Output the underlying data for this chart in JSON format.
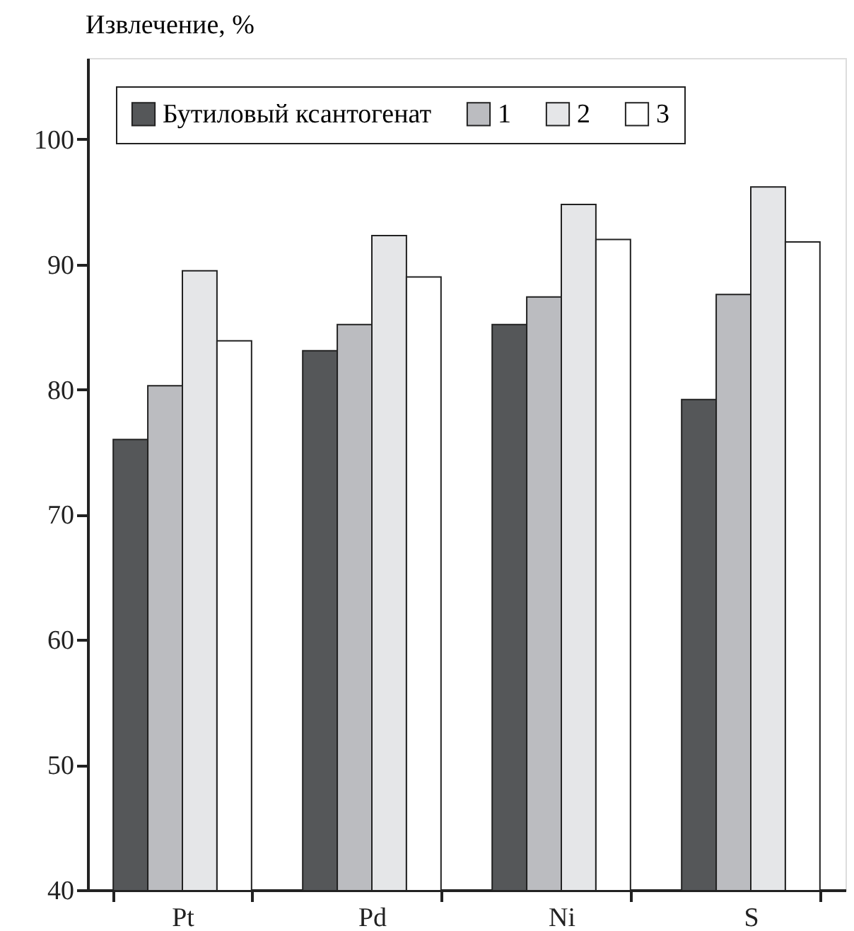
{
  "chart_data": {
    "type": "bar",
    "ylabel": "Извлечение, %",
    "categories": [
      "Pt",
      "Pd",
      "Ni",
      "S"
    ],
    "series": [
      {
        "name": "Бутиловый ксантогенат",
        "color": "#555759",
        "values": [
          76.0,
          83.1,
          85.2,
          79.2
        ]
      },
      {
        "name": "1",
        "color": "#bbbcc0",
        "values": [
          80.3,
          85.2,
          87.4,
          87.6
        ]
      },
      {
        "name": "2",
        "color": "#e5e6e8",
        "values": [
          89.5,
          92.3,
          94.8,
          96.2
        ]
      },
      {
        "name": "3",
        "color": "#ffffff",
        "values": [
          83.9,
          89.0,
          92.0,
          91.8
        ]
      }
    ],
    "ylim": [
      40,
      106.5
    ],
    "yticks": [
      40,
      50,
      60,
      70,
      80,
      90,
      100
    ],
    "grid": false,
    "legend": "top"
  }
}
